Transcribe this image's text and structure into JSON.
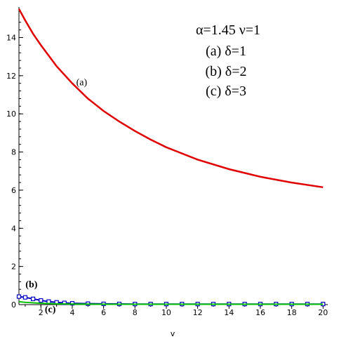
{
  "chart_data": {
    "type": "line",
    "xlabel": "v",
    "ylabel": "",
    "xlim": [
      0.6,
      20.3
    ],
    "ylim": [
      0,
      15.6
    ],
    "x_ticks": [
      2,
      4,
      6,
      8,
      10,
      12,
      14,
      16,
      18,
      20
    ],
    "y_ticks": [
      0,
      2,
      4,
      6,
      8,
      10,
      12,
      14
    ],
    "grid": false,
    "legend": "top-right",
    "params_text": "α=1.45  ν=1",
    "legend_entries": [
      "(a)  δ=1",
      "(b)  δ=2",
      "(c)  δ=3"
    ],
    "curve_labels": [
      {
        "text": "(a)",
        "x": 4.6,
        "y": 11.5
      },
      {
        "text": "(b)",
        "x": 1.4,
        "y": 0.9
      },
      {
        "text": "(c)",
        "x": 2.6,
        "y": -0.4
      }
    ],
    "series": [
      {
        "name": "(a)",
        "color": "#e00000",
        "marker": "none",
        "x": [
          0.6,
          1,
          1.5,
          2,
          3,
          4,
          5,
          6,
          7,
          8,
          9,
          10,
          12,
          14,
          16,
          18,
          20
        ],
        "y": [
          15.5,
          14.9,
          14.2,
          13.6,
          12.5,
          11.6,
          10.8,
          10.15,
          9.6,
          9.1,
          8.65,
          8.25,
          7.6,
          7.1,
          6.7,
          6.4,
          6.15
        ]
      },
      {
        "name": "(b)",
        "color": "#0000c0",
        "marker": "square",
        "x": [
          0.6,
          1,
          1.5,
          2,
          2.5,
          3,
          3.5,
          4,
          5,
          6,
          7,
          8,
          9,
          10,
          11,
          12,
          13,
          14,
          15,
          16,
          17,
          18,
          19,
          20
        ],
        "y": [
          0.42,
          0.38,
          0.3,
          0.22,
          0.16,
          0.12,
          0.09,
          0.07,
          0.05,
          0.04,
          0.035,
          0.03,
          0.03,
          0.03,
          0.03,
          0.03,
          0.03,
          0.03,
          0.03,
          0.03,
          0.03,
          0.03,
          0.03,
          0.03
        ]
      },
      {
        "name": "(c)",
        "color": "#00c000",
        "marker": "none",
        "x": [
          0.6,
          1,
          2,
          3,
          4,
          6,
          8,
          10,
          12,
          14,
          16,
          18,
          20
        ],
        "y": [
          0.15,
          0.12,
          0.07,
          0.04,
          0.03,
          0.02,
          0.02,
          0.02,
          0.02,
          0.02,
          0.02,
          0.02,
          0.02
        ]
      }
    ]
  }
}
